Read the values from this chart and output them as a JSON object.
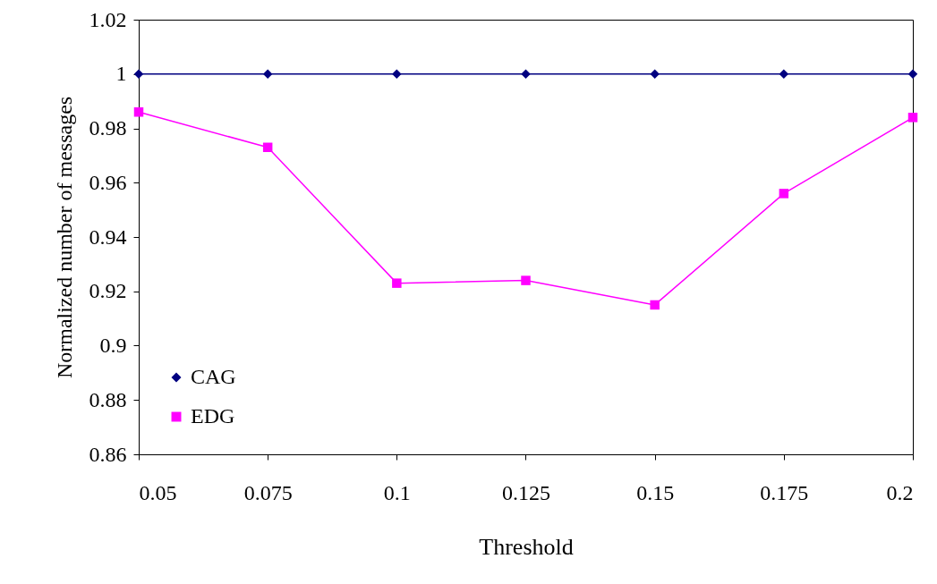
{
  "chart_data": {
    "type": "line",
    "xlabel": "Threshold",
    "ylabel": "Normalized number of messages",
    "x": [
      0.05,
      0.075,
      0.1,
      0.125,
      0.15,
      0.175,
      0.2
    ],
    "series": [
      {
        "name": "CAG",
        "color": "#000080",
        "marker": "diamond",
        "values": [
          1,
          1,
          1,
          1,
          1,
          1,
          1
        ]
      },
      {
        "name": "EDG",
        "color": "#ff00ff",
        "marker": "square",
        "values": [
          0.986,
          0.973,
          0.923,
          0.924,
          0.915,
          0.956,
          0.984
        ]
      }
    ],
    "xlim": [
      0.05,
      0.2
    ],
    "xticks": [
      0.05,
      0.075,
      0.1,
      0.125,
      0.15,
      0.175,
      0.2
    ],
    "ylim": [
      0.86,
      1.02
    ],
    "yticks": [
      0.86,
      0.88,
      0.9,
      0.92,
      0.94,
      0.96,
      0.98,
      1,
      1.02
    ],
    "grid": false,
    "legend": "bottom left",
    "line_style": "solid"
  }
}
